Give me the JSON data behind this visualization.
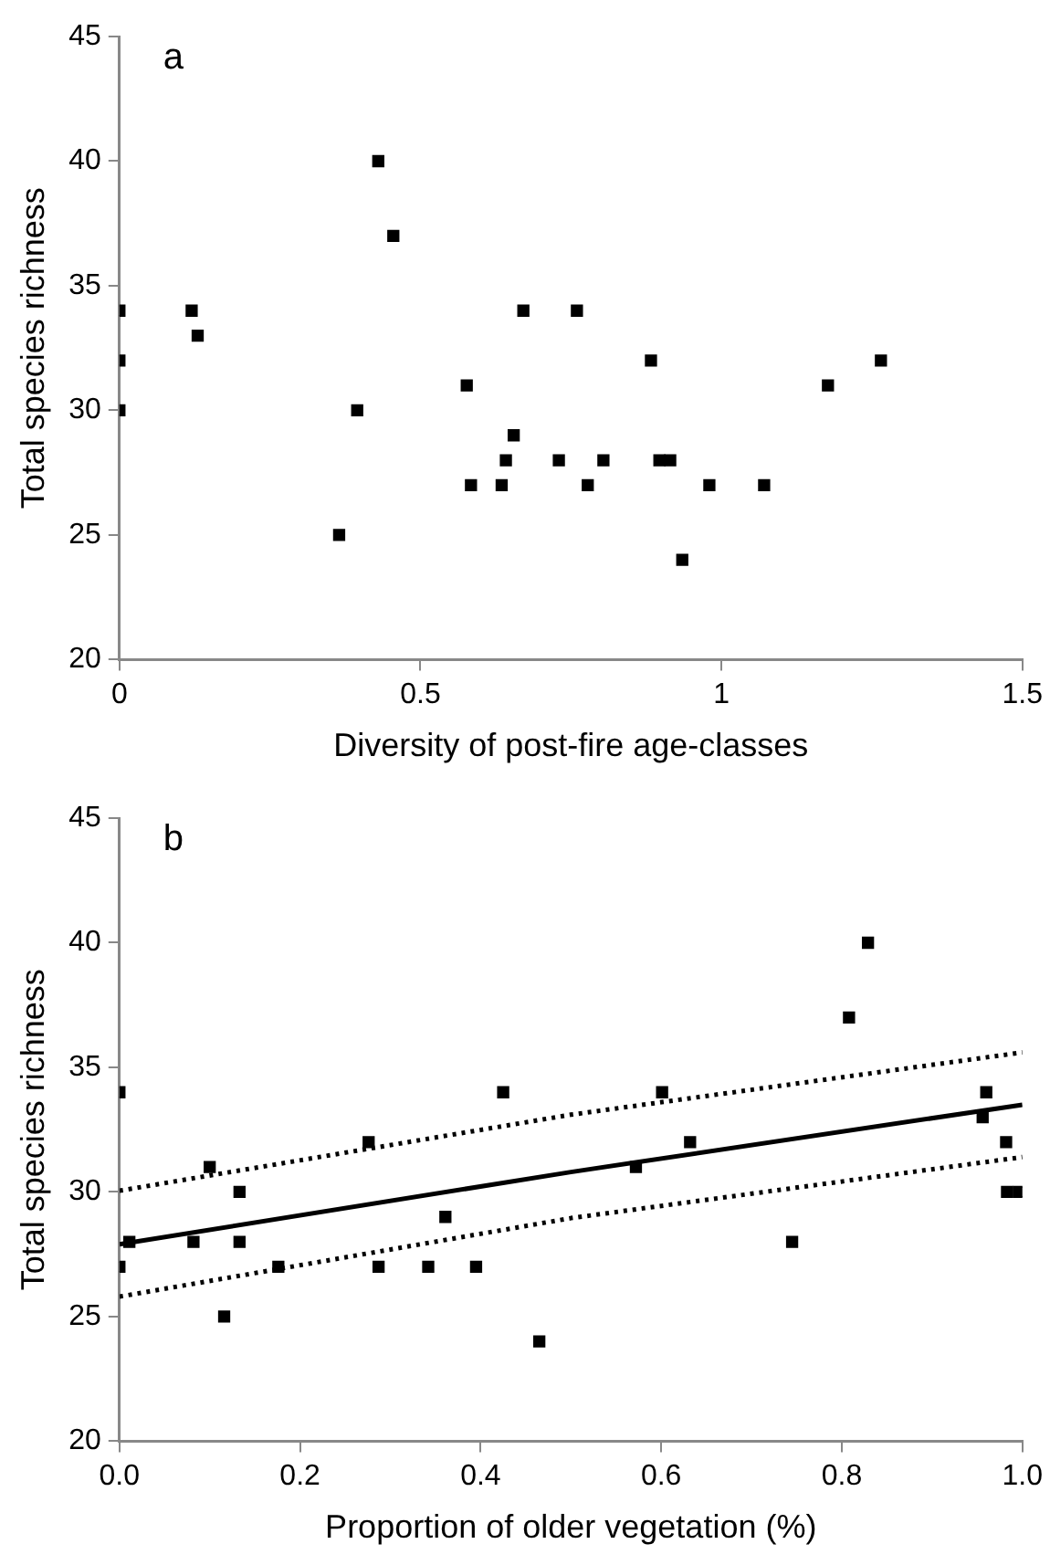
{
  "chart_data": [
    {
      "type": "scatter",
      "xlabel": "Diversity of post-fire age-classes",
      "ylabel": "Total species richness",
      "annotations": [
        "a"
      ],
      "xlim": [
        0,
        1.5
      ],
      "xticks": [
        0,
        0.5,
        1,
        1.5
      ],
      "ylim": [
        20,
        45
      ],
      "yticks": [
        20,
        25,
        30,
        35,
        40,
        45
      ],
      "marker": "square",
      "series": [
        {
          "color": "#000000",
          "x": [
            0,
            0,
            0,
            0.12,
            0.13,
            0.365,
            0.395,
            0.43,
            0.455,
            0.577,
            0.584,
            0.635,
            0.642,
            0.655,
            0.671,
            0.73,
            0.76,
            0.778,
            0.804,
            0.883,
            0.897,
            0.915,
            0.935,
            0.98,
            1.071,
            1.177,
            1.265
          ],
          "values": [
            34,
            32,
            30,
            34,
            33,
            25,
            30,
            40,
            37,
            31,
            27,
            27,
            28,
            29,
            34,
            28,
            34,
            27,
            28,
            32,
            28,
            28,
            24,
            27,
            27,
            31,
            32
          ]
        }
      ]
    },
    {
      "type": "scatter",
      "xlabel": "Proportion of older vegetation (%)",
      "ylabel": "Total species richness",
      "annotations": [
        "b"
      ],
      "xlim": [
        0,
        1
      ],
      "xticks": [
        {
          "value": 0,
          "label": "0.0"
        },
        {
          "value": 0.2,
          "label": "0.2"
        },
        {
          "value": 0.4,
          "label": "0.4"
        },
        {
          "value": 0.6,
          "label": "0.6"
        },
        {
          "value": 0.8,
          "label": "0.8"
        },
        {
          "value": 1,
          "label": "1.0"
        }
      ],
      "ylim": [
        20,
        45
      ],
      "yticks": [
        20,
        25,
        30,
        35,
        40,
        45
      ],
      "marker": "square",
      "series": [
        {
          "color": "#000000",
          "x": [
            0,
            0,
            0.011,
            0.1,
            0.082,
            0.133,
            0.133,
            0.116,
            0.176,
            0.276,
            0.287,
            0.342,
            0.361,
            0.395,
            0.425,
            0.465,
            0.601,
            0.632,
            0.572,
            0.745,
            0.808,
            0.829,
            0.96,
            0.956,
            0.982,
            0.983,
            0.996
          ],
          "values": [
            34,
            27,
            28,
            31,
            28,
            30,
            28,
            25,
            27,
            32,
            27,
            27,
            29,
            27,
            34,
            24,
            34,
            32,
            31,
            28,
            37,
            40,
            34,
            33,
            32,
            30,
            30
          ]
        },
        {
          "type": "line",
          "color": "#000000",
          "marker": "none",
          "line_style": "solid",
          "x": [
            0,
            0.5,
            1
          ],
          "values": [
            27.9,
            30.8,
            33.5
          ]
        },
        {
          "type": "line",
          "color": "#000000",
          "marker": "none",
          "line_style": "dotted",
          "x": [
            0,
            0.5,
            1
          ],
          "values": [
            30.05,
            33.1,
            35.6
          ]
        },
        {
          "type": "line",
          "color": "#000000",
          "marker": "none",
          "line_style": "dotted",
          "x": [
            0,
            0.5,
            1
          ],
          "values": [
            25.8,
            28.95,
            31.4
          ]
        }
      ]
    }
  ]
}
